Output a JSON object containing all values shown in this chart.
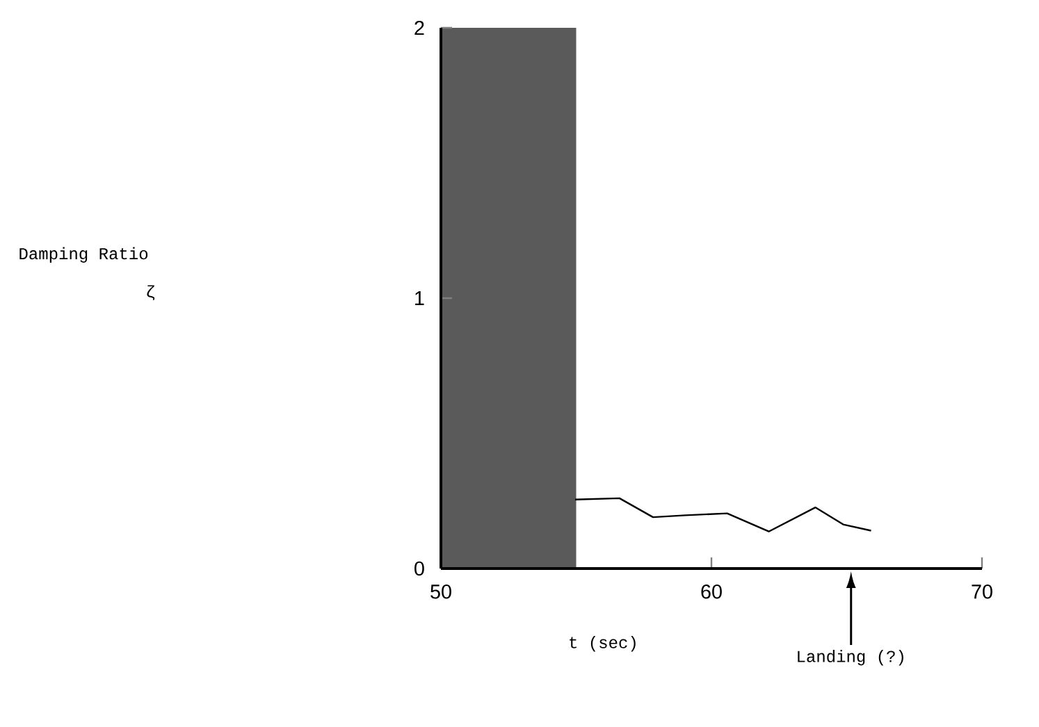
{
  "chart_data": {
    "type": "line",
    "xlabel": "t (sec)",
    "x": [
      54.96,
      56.6,
      57.84,
      59.04,
      60.58,
      62.12,
      63.84,
      64.87,
      65.9
    ],
    "values": [
      0.255,
      0.26,
      0.19,
      0.197,
      0.204,
      0.137,
      0.226,
      0.163,
      0.14
    ],
    "color": "#000000",
    "xlim": [
      50,
      70
    ],
    "ylim": [
      0,
      2
    ],
    "xticks": [
      50,
      60,
      70
    ],
    "yticks": [
      0,
      1,
      2
    ],
    "bands": [
      {
        "axis": "x",
        "from": 50,
        "to": 55,
        "color": "#5a5a5a"
      }
    ],
    "annotations": [
      "Damping Ratio",
      "ζ",
      "Landing (?)"
    ]
  }
}
